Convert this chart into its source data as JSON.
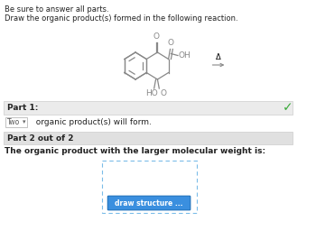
{
  "title_line1": "Be sure to answer all parts.",
  "title_line2": "Draw the organic product(s) formed in the following reaction.",
  "part1_label": "Part 1:",
  "part1_answer": "Two",
  "part1_text": "  organic product(s) will form.",
  "part2_label": "Part 2 out of 2",
  "part2_question": "The organic product with the larger molecular weight is:",
  "button_text": "draw structure ...",
  "delta_label": "Δ",
  "bg_color": "#ffffff",
  "bar_color": "#ebebeb",
  "bar_color2": "#e0e0e0",
  "check_color": "#3aaa3a",
  "button_color": "#3a8fdf",
  "button_text_color": "#ffffff",
  "dashed_box_color": "#7bbce8",
  "text_color": "#000000",
  "arrow_color": "#888888",
  "mol_color": "#888888",
  "mol_lw": 0.9
}
